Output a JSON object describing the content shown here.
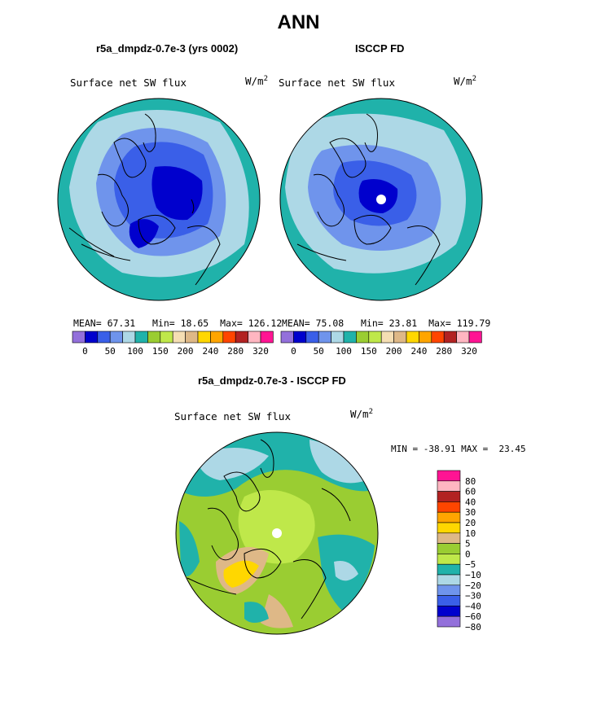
{
  "main_title": "ANN",
  "panels": [
    {
      "title": "r5a_dmpdz-0.7e-3 (yrs 0002)",
      "field_label": "Surface net SW flux",
      "units_base": "W/m",
      "units_exp": "2",
      "stats": {
        "mean_label": "MEAN=",
        "mean": "67.31",
        "min_label": "Min=",
        "min": "18.65",
        "max_label": "Max=",
        "max": "126.12"
      }
    },
    {
      "title": "ISCCP FD",
      "field_label": "Surface net SW flux",
      "units_base": "W/m",
      "units_exp": "2",
      "stats": {
        "mean_label": "MEAN=",
        "mean": "75.08",
        "min_label": "Min=",
        "min": "23.81",
        "max_label": "Max=",
        "max": "119.79"
      }
    },
    {
      "title": "r5a_dmpdz-0.7e-3 - ISCCP FD",
      "field_label": "Surface net SW flux",
      "units_base": "W/m",
      "units_exp": "2",
      "minmax_text": "MIN = -38.91 MAX =  23.45"
    }
  ],
  "chart_data": [
    {
      "type": "heatmap",
      "title": "r5a_dmpdz-0.7e-3 (yrs 0002)",
      "projection": "north polar stereographic",
      "variable": "Surface net SW flux",
      "units": "W/m^2",
      "mean": 67.31,
      "min": 18.65,
      "max": 126.12,
      "contour_levels": [
        0,
        25,
        50,
        75,
        100,
        125,
        150,
        175,
        200,
        220,
        240,
        260,
        280,
        300,
        320
      ],
      "colorbar_tick_labels": [
        "0",
        "50",
        "100",
        "150",
        "200",
        "240",
        "280",
        "320"
      ]
    },
    {
      "type": "heatmap",
      "title": "ISCCP FD",
      "projection": "north polar stereographic",
      "variable": "Surface net SW flux",
      "units": "W/m^2",
      "mean": 75.08,
      "min": 23.81,
      "max": 119.79,
      "contour_levels": [
        0,
        25,
        50,
        75,
        100,
        125,
        150,
        175,
        200,
        220,
        240,
        260,
        280,
        300,
        320
      ],
      "colorbar_tick_labels": [
        "0",
        "50",
        "100",
        "150",
        "200",
        "240",
        "280",
        "320"
      ]
    },
    {
      "type": "heatmap",
      "title": "r5a_dmpdz-0.7e-3 - ISCCP FD",
      "projection": "north polar stereographic",
      "variable": "Surface net SW flux",
      "units": "W/m^2",
      "min": -38.91,
      "max": 23.45,
      "contour_levels": [
        -80,
        -60,
        -40,
        -30,
        -20,
        -10,
        -5,
        0,
        5,
        10,
        20,
        30,
        40,
        60,
        80
      ],
      "colorbar_tick_labels": [
        "80",
        "60",
        "40",
        "30",
        "20",
        "10",
        "5",
        "0",
        "−5",
        "−10",
        "−20",
        "−30",
        "−40",
        "−60",
        "−80"
      ]
    }
  ],
  "colors": {
    "field_scale": [
      "#9370db",
      "#0000cd",
      "#3a5fe8",
      "#6f94ec",
      "#add8e6",
      "#20b2aa",
      "#9acd32",
      "#bfe84a",
      "#f5deb3",
      "#deb887",
      "#ffd700",
      "#ffa500",
      "#ff4500",
      "#b22222",
      "#ffb6c1",
      "#ff1493"
    ],
    "diff_scale_top_down": [
      "#ff1493",
      "#ffb6c1",
      "#b22222",
      "#ff4500",
      "#ffa500",
      "#ffd700",
      "#deb887",
      "#9acd32",
      "#bfe84a",
      "#20b2aa",
      "#add8e6",
      "#6f94ec",
      "#3a5fe8",
      "#0000cd",
      "#9370db"
    ]
  }
}
